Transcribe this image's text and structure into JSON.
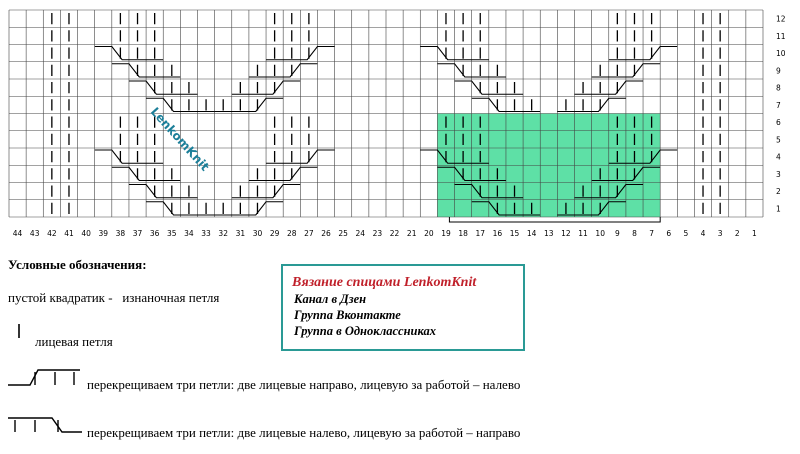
{
  "grid": {
    "columns": [
      44,
      43,
      42,
      41,
      40,
      39,
      38,
      37,
      36,
      35,
      34,
      33,
      32,
      31,
      30,
      29,
      28,
      27,
      26,
      25,
      24,
      23,
      22,
      21,
      20,
      19,
      18,
      17,
      16,
      15,
      14,
      13,
      12,
      11,
      10,
      9,
      8,
      7,
      6,
      5,
      4,
      3,
      2,
      1
    ],
    "rows": [
      1,
      2,
      3,
      4,
      5,
      6,
      7,
      8,
      9,
      10,
      11,
      12
    ],
    "watermark": "LenkomKnit"
  },
  "legend": {
    "title": "Условные обозначения:",
    "items": [
      "пустой квадратик -   изнаночная петля",
      "лицевая петля",
      "перекрещиваем три петли: две лицевые направо, лицевую за работой – налево",
      "перекрещиваем три петли: две лицевые налево, лицевую за работой – направо"
    ]
  },
  "info_box": {
    "title": "Вязание спицами LenkomKnit",
    "lines": [
      "Канал в Дзен",
      "Группа Вконтакте",
      "Группа в Одноклассниках"
    ]
  }
}
